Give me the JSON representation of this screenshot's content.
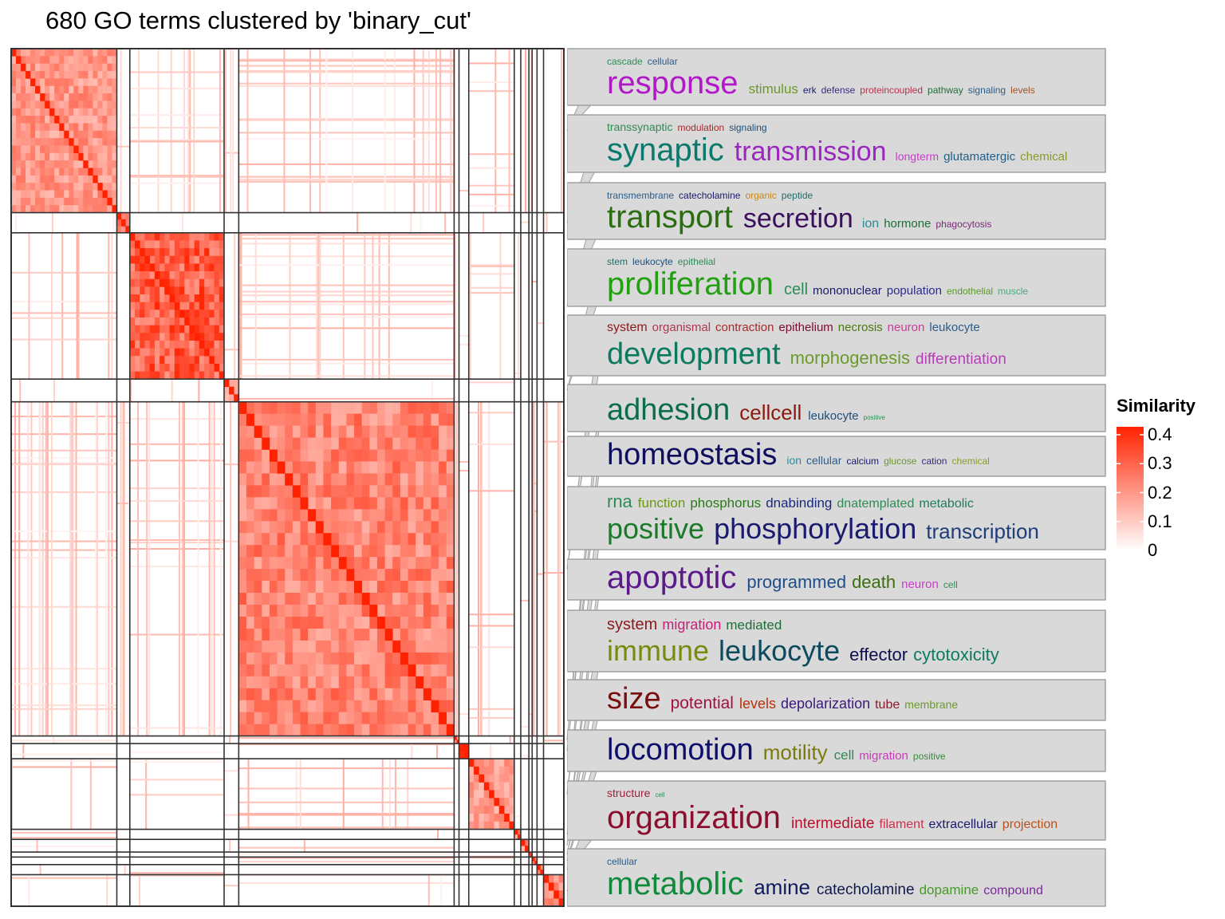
{
  "title": "680 GO terms clustered by 'binary_cut'",
  "chart_data": {
    "type": "heatmap",
    "title": "680 GO terms clustered by 'binary_cut'",
    "n_terms": 680,
    "legend": {
      "title": "Similarity",
      "ticks": [
        "0.4",
        "0.3",
        "0.2",
        "0.1",
        "0"
      ],
      "tick_values": [
        0.4,
        0.3,
        0.2,
        0.1,
        0
      ],
      "range": [
        0,
        0.4
      ],
      "colors": {
        "low": "#ffffff",
        "high": "#ff2200"
      }
    },
    "clusters": [
      {
        "size": 130,
        "within": 0.22,
        "words": [
          {
            "text": "cascade",
            "size": 12,
            "color": "#2e8b57",
            "line": 0
          },
          {
            "text": "cellular",
            "size": 12,
            "color": "#2b5c8a",
            "line": 0
          },
          {
            "text": "response",
            "size": 40,
            "color": "#b118c8",
            "line": 1
          },
          {
            "text": "stimulus",
            "size": 17,
            "color": "#6b9a2b",
            "line": 1
          },
          {
            "text": "erk",
            "size": 12,
            "color": "#1a1a6e",
            "line": 1
          },
          {
            "text": "defense",
            "size": 12,
            "color": "#3a2a7a",
            "line": 1
          },
          {
            "text": "proteincoupled",
            "size": 12,
            "color": "#b8324e",
            "line": 1
          },
          {
            "text": "pathway",
            "size": 12,
            "color": "#1f6e3a",
            "line": 1
          },
          {
            "text": "signaling",
            "size": 12,
            "color": "#2b5c8a",
            "line": 1
          },
          {
            "text": "levels",
            "size": 12,
            "color": "#a0522d",
            "line": 1
          }
        ]
      },
      {
        "size": 16,
        "within": 0.28,
        "words": [
          {
            "text": "transsynaptic",
            "size": 14,
            "color": "#2e8b57",
            "line": 0
          },
          {
            "text": "modulation",
            "size": 12,
            "color": "#a52a2a",
            "line": 0
          },
          {
            "text": "signaling",
            "size": 12,
            "color": "#1f4e79",
            "line": 0
          },
          {
            "text": "synaptic",
            "size": 40,
            "color": "#0b7a6e",
            "line": 1
          },
          {
            "text": "transmission",
            "size": 34,
            "color": "#9b27c0",
            "line": 1
          },
          {
            "text": "longterm",
            "size": 14,
            "color": "#c83cc8",
            "line": 1
          },
          {
            "text": "glutamatergic",
            "size": 15,
            "color": "#1f5f8b",
            "line": 1
          },
          {
            "text": "chemical",
            "size": 15,
            "color": "#8b9a2b",
            "line": 1
          }
        ]
      },
      {
        "size": 116,
        "within": 0.34,
        "words": [
          {
            "text": "transmembrane",
            "size": 12,
            "color": "#2b5c8a",
            "line": 0
          },
          {
            "text": "catecholamine",
            "size": 12,
            "color": "#1a1a6e",
            "line": 0
          },
          {
            "text": "organic",
            "size": 12,
            "color": "#c8871b",
            "line": 0
          },
          {
            "text": "peptide",
            "size": 12,
            "color": "#1f6e6e",
            "line": 0
          },
          {
            "text": "transport",
            "size": 40,
            "color": "#2a6e0e",
            "line": 1
          },
          {
            "text": "secretion",
            "size": 34,
            "color": "#3b0f5e",
            "line": 1
          },
          {
            "text": "ion",
            "size": 16,
            "color": "#2b8a9a",
            "line": 1
          },
          {
            "text": "hormone",
            "size": 15,
            "color": "#1f6e3a",
            "line": 1
          },
          {
            "text": "phagocytosis",
            "size": 12,
            "color": "#7a2a7a",
            "line": 1
          }
        ]
      },
      {
        "size": 18,
        "within": 0.18,
        "words": [
          {
            "text": "stem",
            "size": 12,
            "color": "#1f6e6e",
            "line": 0
          },
          {
            "text": "leukocyte",
            "size": 12,
            "color": "#1f4e79",
            "line": 0
          },
          {
            "text": "epithelial",
            "size": 12,
            "color": "#2e8b57",
            "line": 0
          },
          {
            "text": "proliferation",
            "size": 40,
            "color": "#22a012",
            "line": 1
          },
          {
            "text": "cell",
            "size": 20,
            "color": "#2e8b57",
            "line": 1
          },
          {
            "text": "mononuclear",
            "size": 15,
            "color": "#1a1a6e",
            "line": 1
          },
          {
            "text": "population",
            "size": 15,
            "color": "#2b2b8a",
            "line": 1
          },
          {
            "text": "endothelial",
            "size": 12,
            "color": "#5a9a2b",
            "line": 1
          },
          {
            "text": "muscle",
            "size": 12,
            "color": "#4aaa7a",
            "line": 1
          }
        ]
      },
      {
        "size": 265,
        "within": 0.26,
        "words": [
          {
            "text": "system",
            "size": 16,
            "color": "#8b1a1a",
            "line": 0
          },
          {
            "text": "organismal",
            "size": 15,
            "color": "#b8324e",
            "line": 0
          },
          {
            "text": "contraction",
            "size": 15,
            "color": "#a52a2a",
            "line": 0
          },
          {
            "text": "epithelium",
            "size": 15,
            "color": "#7a0e2e",
            "line": 0
          },
          {
            "text": "necrosis",
            "size": 15,
            "color": "#4a7a0e",
            "line": 0
          },
          {
            "text": "neuron",
            "size": 15,
            "color": "#c83c9a",
            "line": 0
          },
          {
            "text": "leukocyte",
            "size": 15,
            "color": "#2b5c8a",
            "line": 0
          },
          {
            "text": "development",
            "size": 38,
            "color": "#0b7a5e",
            "line": 1
          },
          {
            "text": "morphogenesis",
            "size": 22,
            "color": "#6b9a2b",
            "line": 1
          },
          {
            "text": "differentiation",
            "size": 19,
            "color": "#b83cb8",
            "line": 1
          }
        ]
      },
      {
        "size": 6,
        "within": 0.18,
        "words": [
          {
            "text": "adhesion",
            "size": 38,
            "color": "#0b6e4a",
            "line": 1
          },
          {
            "text": "cellcell",
            "size": 26,
            "color": "#8b1a0e",
            "line": 1
          },
          {
            "text": "leukocyte",
            "size": 15,
            "color": "#1f4e79",
            "line": 1
          },
          {
            "text": "positive",
            "size": 8,
            "color": "#2e8b57",
            "line": 1
          }
        ]
      },
      {
        "size": 12,
        "within": 0.4,
        "words": [
          {
            "text": "homeostasis",
            "size": 38,
            "color": "#0e0e5e",
            "line": 1
          },
          {
            "text": "ion",
            "size": 14,
            "color": "#2b8a9a",
            "line": 1
          },
          {
            "text": "cellular",
            "size": 14,
            "color": "#2b5c8a",
            "line": 1
          },
          {
            "text": "calcium",
            "size": 12,
            "color": "#1a1a6e",
            "line": 1
          },
          {
            "text": "glucose",
            "size": 12,
            "color": "#6b9a2b",
            "line": 1
          },
          {
            "text": "cation",
            "size": 12,
            "color": "#3a2a7a",
            "line": 1
          },
          {
            "text": "chemical",
            "size": 12,
            "color": "#8b9a2b",
            "line": 1
          }
        ]
      },
      {
        "size": 56,
        "within": 0.2,
        "words": [
          {
            "text": "rna",
            "size": 22,
            "color": "#2e8b57",
            "line": 0
          },
          {
            "text": "function",
            "size": 17,
            "color": "#6b9a0e",
            "line": 0
          },
          {
            "text": "phosphorus",
            "size": 17,
            "color": "#2a7a1a",
            "line": 0
          },
          {
            "text": "dnabinding",
            "size": 17,
            "color": "#1a2a7a",
            "line": 0
          },
          {
            "text": "dnatemplated",
            "size": 16,
            "color": "#2e8b57",
            "line": 0
          },
          {
            "text": "metabolic",
            "size": 16,
            "color": "#1f7a5e",
            "line": 0
          },
          {
            "text": "positive",
            "size": 36,
            "color": "#1a7a2a",
            "line": 1
          },
          {
            "text": "phosphorylation",
            "size": 36,
            "color": "#1a1a6e",
            "line": 1
          },
          {
            "text": "transcription",
            "size": 26,
            "color": "#1f3e79",
            "line": 1
          }
        ]
      },
      {
        "size": 8,
        "within": 0.24,
        "words": [
          {
            "text": "apoptotic",
            "size": 40,
            "color": "#5a1a8a",
            "line": 1
          },
          {
            "text": "programmed",
            "size": 22,
            "color": "#1f4e89",
            "line": 1
          },
          {
            "text": "death",
            "size": 22,
            "color": "#3a6e0e",
            "line": 1
          },
          {
            "text": "neuron",
            "size": 15,
            "color": "#c83cc8",
            "line": 1
          },
          {
            "text": "cell",
            "size": 12,
            "color": "#2e8b57",
            "line": 1
          }
        ]
      },
      {
        "size": 10,
        "within": 0.22,
        "words": [
          {
            "text": "system",
            "size": 20,
            "color": "#8b1a1a",
            "line": 0
          },
          {
            "text": "migration",
            "size": 18,
            "color": "#c81e7a",
            "line": 0
          },
          {
            "text": "mediated",
            "size": 17,
            "color": "#1f6e3a",
            "line": 0
          },
          {
            "text": "immune",
            "size": 36,
            "color": "#7a8a0e",
            "line": 1
          },
          {
            "text": "leukocyte",
            "size": 36,
            "color": "#0e4a5e",
            "line": 1
          },
          {
            "text": "effector",
            "size": 22,
            "color": "#0e0e4e",
            "line": 1
          },
          {
            "text": "cytotoxicity",
            "size": 22,
            "color": "#0e7a5e",
            "line": 1
          }
        ]
      },
      {
        "size": 4,
        "within": 0.3,
        "words": [
          {
            "text": "size",
            "size": 38,
            "color": "#7a0e0e",
            "line": 1
          },
          {
            "text": "potential",
            "size": 21,
            "color": "#a0123e",
            "line": 1
          },
          {
            "text": "levels",
            "size": 18,
            "color": "#b8320e",
            "line": 1
          },
          {
            "text": "depolarization",
            "size": 18,
            "color": "#3a1a7a",
            "line": 1
          },
          {
            "text": "tube",
            "size": 16,
            "color": "#8b1a2a",
            "line": 1
          },
          {
            "text": "membrane",
            "size": 14,
            "color": "#6b9a2b",
            "line": 1
          }
        ]
      },
      {
        "size": 6,
        "within": 0.28,
        "words": [
          {
            "text": "locomotion",
            "size": 38,
            "color": "#0e0e6e",
            "line": 1
          },
          {
            "text": "motility",
            "size": 26,
            "color": "#7a7a0e",
            "line": 1
          },
          {
            "text": "cell",
            "size": 17,
            "color": "#2e8b57",
            "line": 1
          },
          {
            "text": "migration",
            "size": 15,
            "color": "#c83cb8",
            "line": 1
          },
          {
            "text": "positive",
            "size": 12,
            "color": "#3a8a3a",
            "line": 1
          }
        ]
      },
      {
        "size": 8,
        "within": 0.26,
        "words": [
          {
            "text": "structure",
            "size": 14,
            "color": "#a01e3e",
            "line": 0
          },
          {
            "text": "cell",
            "size": 8,
            "color": "#2e8b57",
            "line": 0
          },
          {
            "text": "organization",
            "size": 40,
            "color": "#8b0e2e",
            "line": 1
          },
          {
            "text": "intermediate",
            "size": 19,
            "color": "#b8122e",
            "line": 1
          },
          {
            "text": "filament",
            "size": 16,
            "color": "#c8324e",
            "line": 1
          },
          {
            "text": "extracellular",
            "size": 16,
            "color": "#1a1a6e",
            "line": 1
          },
          {
            "text": "projection",
            "size": 16,
            "color": "#b8521e",
            "line": 1
          }
        ]
      },
      {
        "size": 25,
        "within": 0.24,
        "words": [
          {
            "text": "cellular",
            "size": 12,
            "color": "#2b5c8a",
            "line": 0
          },
          {
            "text": "metabolic",
            "size": 40,
            "color": "#0e8a3a",
            "line": 1
          },
          {
            "text": "amine",
            "size": 26,
            "color": "#0e1a5e",
            "line": 1
          },
          {
            "text": "catecholamine",
            "size": 19,
            "color": "#0e1a4e",
            "line": 1
          },
          {
            "text": "dopamine",
            "size": 17,
            "color": "#4a9a2b",
            "line": 1
          },
          {
            "text": "compound",
            "size": 16,
            "color": "#7a2a9a",
            "line": 1
          }
        ]
      }
    ]
  }
}
